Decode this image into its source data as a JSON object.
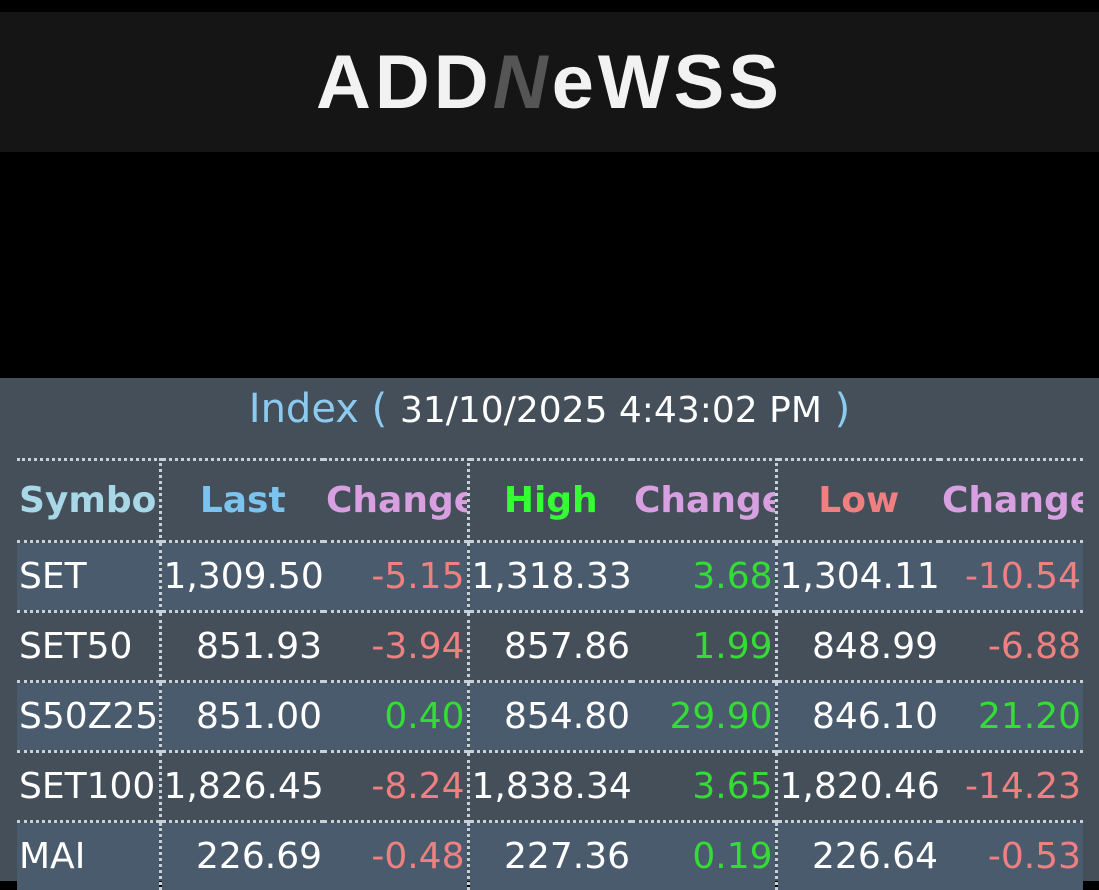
{
  "header": {
    "logo": [
      "ADD",
      "N",
      "eWSS"
    ]
  },
  "index_title": {
    "label": "Index",
    "open": "(",
    "timestamp": "31/10/2025 4:43:02 PM",
    "close": ")"
  },
  "table": {
    "columns": [
      "Symbol",
      "Last",
      "Change",
      "High",
      "Change",
      "Low",
      "Change"
    ],
    "rows": [
      [
        "SET",
        "1,309.50",
        "-5.15",
        "1,318.33",
        "3.68",
        "1,304.11",
        "-10.54"
      ],
      [
        "SET50",
        "851.93",
        "-3.94",
        "857.86",
        "1.99",
        "848.99",
        "-6.88"
      ],
      [
        "S50Z25",
        "851.00",
        "0.40",
        "854.80",
        "29.90",
        "846.10",
        "21.20"
      ],
      [
        "SET100",
        "1,826.45",
        "-8.24",
        "1,838.34",
        "3.65",
        "1,820.46",
        "-14.23"
      ],
      [
        "MAI",
        "226.69",
        "-0.48",
        "227.36",
        "0.19",
        "226.64",
        "-0.53"
      ]
    ]
  }
}
